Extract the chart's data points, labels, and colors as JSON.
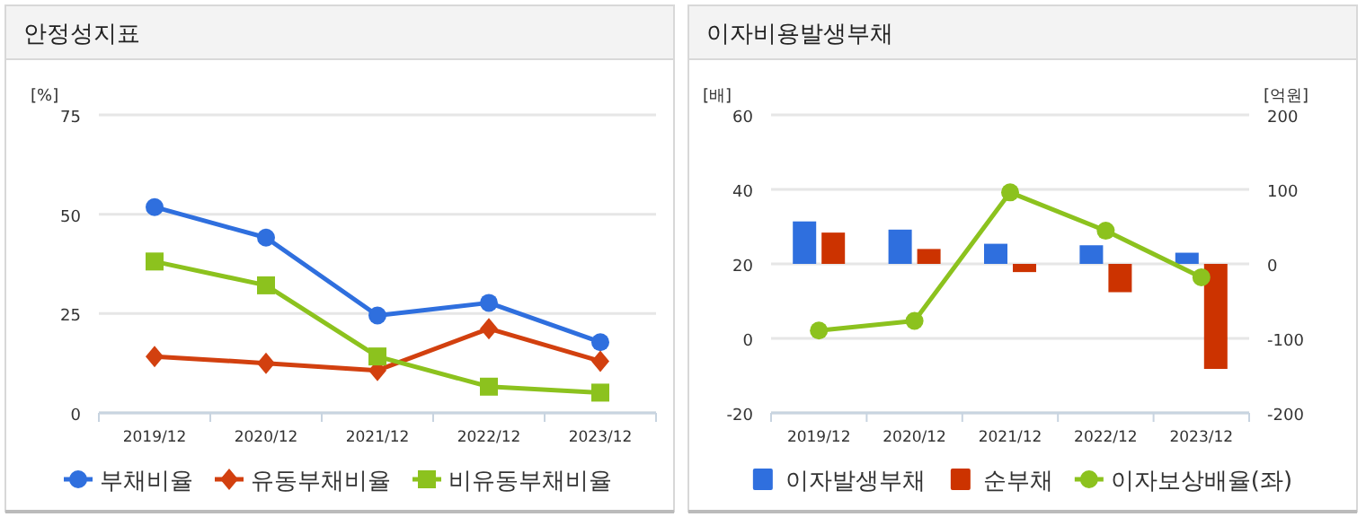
{
  "chart_data": [
    {
      "type": "line",
      "title": "안정성지표",
      "ylabel": "[%]",
      "categories": [
        "2019/12",
        "2020/12",
        "2021/12",
        "2022/12",
        "2023/12"
      ],
      "ylim": [
        0,
        75
      ],
      "yticks": [
        0,
        25,
        50,
        75
      ],
      "grid": "y",
      "legend": "bottom",
      "series": [
        {
          "name": "부채비율",
          "color": "#2f6fde",
          "marker": "circle",
          "values": [
            51.8,
            44.1,
            24.5,
            27.7,
            17.8
          ]
        },
        {
          "name": "유동부채비율",
          "color": "#d2400f",
          "marker": "diamond",
          "values": [
            14.2,
            12.5,
            10.7,
            21.2,
            13.0
          ]
        },
        {
          "name": "비유동부채비율",
          "color": "#8cc21e",
          "marker": "square",
          "values": [
            38.1,
            32.1,
            14.2,
            6.6,
            5.1
          ]
        }
      ]
    },
    {
      "type": "bar",
      "title": "이자비용발생부채",
      "ylabel": "[배]",
      "y2label": "[억원]",
      "categories": [
        "2019/12",
        "2020/12",
        "2021/12",
        "2022/12",
        "2023/12"
      ],
      "ylim": [
        -20,
        60
      ],
      "yticks": [
        -20,
        0,
        20,
        40,
        60
      ],
      "y2lim": [
        -200,
        200
      ],
      "y2ticks": [
        -200,
        -100,
        0,
        100,
        200
      ],
      "grid": "y",
      "legend": "bottom",
      "series": [
        {
          "name": "이자발생부채",
          "color": "#2f6fde",
          "axis": "y2",
          "values": [
            57,
            46,
            27,
            25,
            15
          ]
        },
        {
          "name": "순부채",
          "color": "#cc3300",
          "axis": "y2",
          "values": [
            42,
            20,
            -11,
            -38,
            -141
          ]
        },
        {
          "name": "이자보상배율(좌)",
          "type": "line",
          "color": "#8cc21e",
          "marker": "circle",
          "values": [
            2.1,
            4.7,
            39.2,
            28.9,
            16.4
          ]
        }
      ]
    }
  ]
}
